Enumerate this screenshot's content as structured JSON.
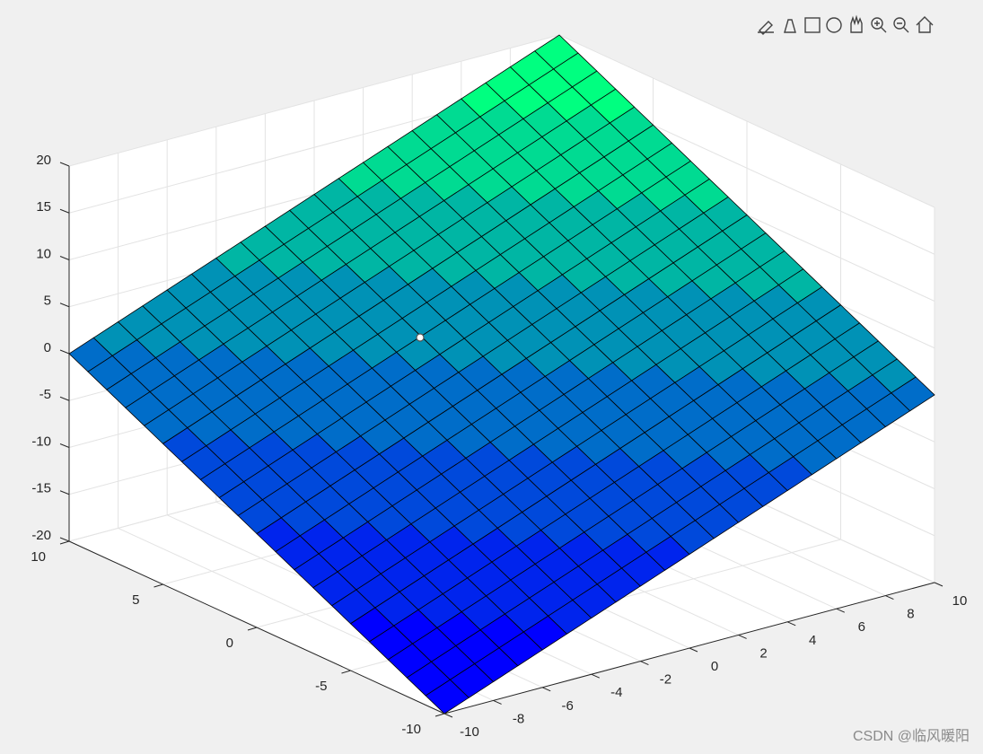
{
  "chart_data": {
    "type": "surface",
    "x": [
      -10,
      -9,
      -8,
      -7,
      -6,
      -5,
      -4,
      -3,
      -2,
      -1,
      0,
      1,
      2,
      3,
      4,
      5,
      6,
      7,
      8,
      9,
      10
    ],
    "y": [
      -10,
      -9,
      -8,
      -7,
      -6,
      -5,
      -4,
      -3,
      -2,
      -1,
      0,
      1,
      2,
      3,
      4,
      5,
      6,
      7,
      8,
      9,
      10
    ],
    "z": [
      [
        -20,
        -19,
        -18,
        -17,
        -16,
        -15,
        -14,
        -13,
        -12,
        -11,
        -10,
        -9,
        -8,
        -7,
        -6,
        -5,
        -4,
        -3,
        -2,
        -1,
        0
      ],
      [
        -19,
        -18,
        -17,
        -16,
        -15,
        -14,
        -13,
        -12,
        -11,
        -10,
        -9,
        -8,
        -7,
        -6,
        -5,
        -4,
        -3,
        -2,
        -1,
        0,
        1
      ],
      [
        -18,
        -17,
        -16,
        -15,
        -14,
        -13,
        -12,
        -11,
        -10,
        -9,
        -8,
        -7,
        -6,
        -5,
        -4,
        -3,
        -2,
        -1,
        0,
        1,
        2
      ],
      [
        -17,
        -16,
        -15,
        -14,
        -13,
        -12,
        -11,
        -10,
        -9,
        -8,
        -7,
        -6,
        -5,
        -4,
        -3,
        -2,
        -1,
        0,
        1,
        2,
        3
      ],
      [
        -16,
        -15,
        -14,
        -13,
        -12,
        -11,
        -10,
        -9,
        -8,
        -7,
        -6,
        -5,
        -4,
        -3,
        -2,
        -1,
        0,
        1,
        2,
        3,
        4
      ],
      [
        -15,
        -14,
        -13,
        -12,
        -11,
        -10,
        -9,
        -8,
        -7,
        -6,
        -5,
        -4,
        -3,
        -2,
        -1,
        0,
        1,
        2,
        3,
        4,
        5
      ],
      [
        -14,
        -13,
        -12,
        -11,
        -10,
        -9,
        -8,
        -7,
        -6,
        -5,
        -4,
        -3,
        -2,
        -1,
        0,
        1,
        2,
        3,
        4,
        5,
        6
      ],
      [
        -13,
        -12,
        -11,
        -10,
        -9,
        -8,
        -7,
        -6,
        -5,
        -4,
        -3,
        -2,
        -1,
        0,
        1,
        2,
        3,
        4,
        5,
        6,
        7
      ],
      [
        -12,
        -11,
        -10,
        -9,
        -8,
        -7,
        -6,
        -5,
        -4,
        -3,
        -2,
        -1,
        0,
        1,
        2,
        3,
        4,
        5,
        6,
        7,
        8
      ],
      [
        -11,
        -10,
        -9,
        -8,
        -7,
        -6,
        -5,
        -4,
        -3,
        -2,
        -1,
        0,
        1,
        2,
        3,
        4,
        5,
        6,
        7,
        8,
        9
      ],
      [
        -10,
        -9,
        -8,
        -7,
        -6,
        -5,
        -4,
        -3,
        -2,
        -1,
        0,
        1,
        2,
        3,
        4,
        5,
        6,
        7,
        8,
        9,
        10
      ],
      [
        -9,
        -8,
        -7,
        -6,
        -5,
        -4,
        -3,
        -2,
        -1,
        0,
        1,
        2,
        3,
        4,
        5,
        6,
        7,
        8,
        9,
        10,
        11
      ],
      [
        -8,
        -7,
        -6,
        -5,
        -4,
        -3,
        -2,
        -1,
        0,
        1,
        2,
        3,
        4,
        5,
        6,
        7,
        8,
        9,
        10,
        11,
        12
      ],
      [
        -7,
        -6,
        -5,
        -4,
        -3,
        -2,
        -1,
        0,
        1,
        2,
        3,
        4,
        5,
        6,
        7,
        8,
        9,
        10,
        11,
        12,
        13
      ],
      [
        -6,
        -5,
        -4,
        -3,
        -2,
        -1,
        0,
        1,
        2,
        3,
        4,
        5,
        6,
        7,
        8,
        9,
        10,
        11,
        12,
        13,
        14
      ],
      [
        -5,
        -4,
        -3,
        -2,
        -1,
        0,
        1,
        2,
        3,
        4,
        5,
        6,
        7,
        8,
        9,
        10,
        11,
        12,
        13,
        14,
        15
      ],
      [
        -4,
        -3,
        -2,
        -1,
        0,
        1,
        2,
        3,
        4,
        5,
        6,
        7,
        8,
        9,
        10,
        11,
        12,
        13,
        14,
        15,
        16
      ],
      [
        -3,
        -2,
        -1,
        0,
        1,
        2,
        3,
        4,
        5,
        6,
        7,
        8,
        9,
        10,
        11,
        12,
        13,
        14,
        15,
        16,
        17
      ],
      [
        -2,
        -1,
        0,
        1,
        2,
        3,
        4,
        5,
        6,
        7,
        8,
        9,
        10,
        11,
        12,
        13,
        14,
        15,
        16,
        17,
        18
      ],
      [
        -1,
        0,
        1,
        2,
        3,
        4,
        5,
        6,
        7,
        8,
        9,
        10,
        11,
        12,
        13,
        14,
        15,
        16,
        17,
        18,
        19
      ],
      [
        0,
        1,
        2,
        3,
        4,
        5,
        6,
        7,
        8,
        9,
        10,
        11,
        12,
        13,
        14,
        15,
        16,
        17,
        18,
        19,
        20
      ]
    ],
    "xlim": [
      -10,
      10
    ],
    "ylim": [
      -10,
      10
    ],
    "zlim": [
      -20,
      20
    ],
    "xticks": [
      -10,
      -8,
      -6,
      -4,
      -2,
      0,
      2,
      4,
      6,
      8,
      10
    ],
    "yticks": [
      -10,
      -5,
      0,
      5,
      10
    ],
    "zticks": [
      -20,
      -15,
      -10,
      -5,
      0,
      5,
      10,
      15,
      20
    ],
    "colormap": [
      "#0000ff",
      "#0024ed",
      "#0049db",
      "#006dc9",
      "#0092b6",
      "#00b6a4",
      "#00db92",
      "#00ff80"
    ],
    "edge_color": "#000000",
    "grid": true
  },
  "watermark": "CSDN @临风暖阳"
}
